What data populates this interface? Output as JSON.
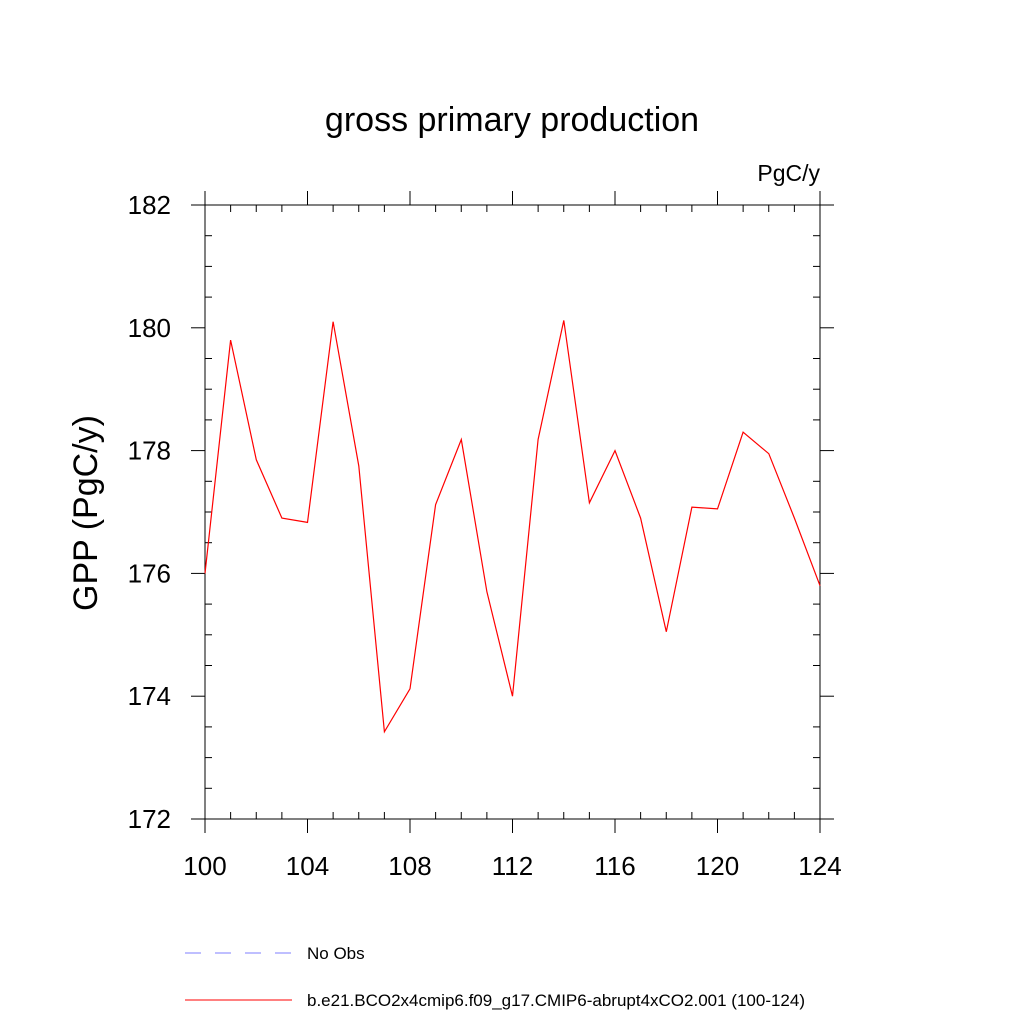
{
  "chart_data": {
    "type": "line",
    "title": "gross primary production",
    "subtitle": "PgC/y",
    "xlabel": "",
    "ylabel": "GPP  (PgC/y)",
    "xlim": [
      100,
      124
    ],
    "ylim": [
      172,
      182
    ],
    "xticks": [
      100,
      104,
      108,
      112,
      116,
      120,
      124
    ],
    "yticks": [
      172,
      174,
      176,
      178,
      180,
      182
    ],
    "x_minor_step": 1,
    "y_minor_step": 0.5,
    "grid": false,
    "legend_position": "bottom-left",
    "series": [
      {
        "name": "b.e21.BCO2x4cmip6.f09_g17.CMIP6-abrupt4xCO2.001 (100-124)",
        "color": "#ff0000",
        "style": "solid",
        "x": [
          100,
          101,
          102,
          103,
          104,
          105,
          106,
          107,
          108,
          109,
          110,
          111,
          112,
          113,
          114,
          115,
          116,
          117,
          118,
          119,
          120,
          121,
          122,
          123,
          124
        ],
        "values": [
          176.0,
          179.8,
          177.85,
          176.9,
          176.83,
          180.1,
          177.75,
          173.42,
          174.12,
          177.12,
          178.18,
          175.7,
          174.0,
          178.18,
          180.12,
          177.15,
          178.0,
          176.9,
          175.05,
          177.08,
          177.05,
          178.3,
          177.95,
          176.9,
          175.8
        ]
      }
    ],
    "legend": [
      {
        "label": "No Obs",
        "color": "#7f7fff",
        "style": "dashed"
      },
      {
        "label": "b.e21.BCO2x4cmip6.f09_g17.CMIP6-abrupt4xCO2.001 (100-124)",
        "color": "#ff0000",
        "style": "solid"
      }
    ]
  }
}
